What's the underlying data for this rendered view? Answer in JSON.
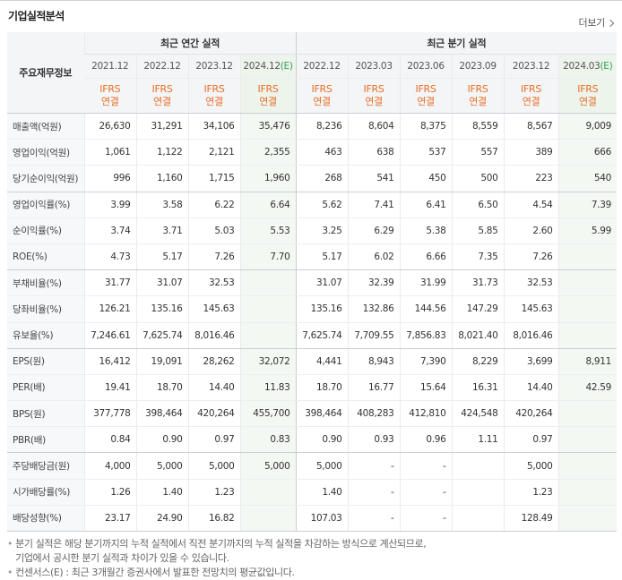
{
  "section_title": "기업실적분석",
  "more_label": "더보기",
  "header": {
    "label_col": "주요재무정보",
    "annual_group": "최근 연간 실적",
    "quarterly_group": "최근 분기 실적",
    "annual_periods": [
      {
        "date": "2021.12",
        "est": ""
      },
      {
        "date": "2022.12",
        "est": ""
      },
      {
        "date": "2023.12",
        "est": ""
      },
      {
        "date": "2024.12",
        "est": "(E)"
      }
    ],
    "quarterly_periods": [
      {
        "date": "2022.12",
        "est": ""
      },
      {
        "date": "2023.03",
        "est": ""
      },
      {
        "date": "2023.06",
        "est": ""
      },
      {
        "date": "2023.09",
        "est": ""
      },
      {
        "date": "2023.12",
        "est": ""
      },
      {
        "date": "2024.03",
        "est": "(E)"
      }
    ],
    "basis_line1": "IFRS",
    "basis_line2": "연결"
  },
  "rows": [
    {
      "label": "매출액(억원)",
      "values": [
        "26,630",
        "31,291",
        "34,106",
        "35,476",
        "8,236",
        "8,604",
        "8,375",
        "8,559",
        "8,567",
        "9,009"
      ]
    },
    {
      "label": "영업이익(억원)",
      "values": [
        "1,061",
        "1,122",
        "2,121",
        "2,355",
        "463",
        "638",
        "537",
        "557",
        "389",
        "666"
      ]
    },
    {
      "label": "당기순이익(억원)",
      "values": [
        "996",
        "1,160",
        "1,715",
        "1,960",
        "268",
        "541",
        "450",
        "500",
        "223",
        "540"
      ]
    },
    {
      "label": "영업이익률(%)",
      "values": [
        "3.99",
        "3.58",
        "6.22",
        "6.64",
        "5.62",
        "7.41",
        "6.41",
        "6.50",
        "4.54",
        "7.39"
      ]
    },
    {
      "label": "순이익률(%)",
      "values": [
        "3.74",
        "3.71",
        "5.03",
        "5.53",
        "3.25",
        "6.29",
        "5.38",
        "5.85",
        "2.60",
        "5.99"
      ]
    },
    {
      "label": "ROE(%)",
      "values": [
        "4.73",
        "5.17",
        "7.26",
        "7.70",
        "5.17",
        "6.02",
        "6.66",
        "7.35",
        "7.26",
        ""
      ]
    },
    {
      "label": "부채비율(%)",
      "values": [
        "31.77",
        "31.07",
        "32.53",
        "",
        "31.07",
        "32.39",
        "31.99",
        "31.73",
        "32.53",
        ""
      ]
    },
    {
      "label": "당좌비율(%)",
      "values": [
        "126.21",
        "135.16",
        "145.63",
        "",
        "135.16",
        "132.86",
        "144.56",
        "147.29",
        "145.63",
        ""
      ]
    },
    {
      "label": "유보율(%)",
      "values": [
        "7,246.61",
        "7,625.74",
        "8,016.46",
        "",
        "7,625.74",
        "7,709.55",
        "7,856.83",
        "8,021.40",
        "8,016.46",
        ""
      ]
    },
    {
      "label": "EPS(원)",
      "values": [
        "16,412",
        "19,091",
        "28,262",
        "32,072",
        "4,441",
        "8,943",
        "7,390",
        "8,229",
        "3,699",
        "8,911"
      ]
    },
    {
      "label": "PER(배)",
      "values": [
        "19.41",
        "18.70",
        "14.40",
        "11.83",
        "18.70",
        "16.77",
        "15.64",
        "16.31",
        "14.40",
        "42.59"
      ]
    },
    {
      "label": "BPS(원)",
      "values": [
        "377,778",
        "398,464",
        "420,264",
        "455,700",
        "398,464",
        "408,283",
        "412,810",
        "424,548",
        "420,264",
        ""
      ]
    },
    {
      "label": "PBR(배)",
      "values": [
        "0.84",
        "0.90",
        "0.97",
        "0.83",
        "0.90",
        "0.93",
        "0.96",
        "1.11",
        "0.97",
        ""
      ]
    },
    {
      "label": "주당배당금(원)",
      "values": [
        "4,000",
        "5,000",
        "5,000",
        "5,000",
        "5,000",
        "-",
        "-",
        "",
        "5,000",
        ""
      ]
    },
    {
      "label": "시가배당률(%)",
      "values": [
        "1.26",
        "1.40",
        "1.23",
        "",
        "1.40",
        "-",
        "-",
        "",
        "1.23",
        ""
      ]
    },
    {
      "label": "배당성향(%)",
      "values": [
        "23.17",
        "24.90",
        "16.82",
        "",
        "107.03",
        "-",
        "-",
        "",
        "128.49",
        ""
      ]
    }
  ],
  "notes": [
    "분기 실적은 해당 분기까지의 누적 실적에서 직전 분기까지의 누적 실적을 차감하는 방식으로 계산되므로,",
    "기업에서 공시한 분기 실적과 차이가 있을 수 있습니다.",
    "컨센서스(E) : 최근 3개월간 증권사에서 발표한 전망치의 평균값입니다."
  ]
}
